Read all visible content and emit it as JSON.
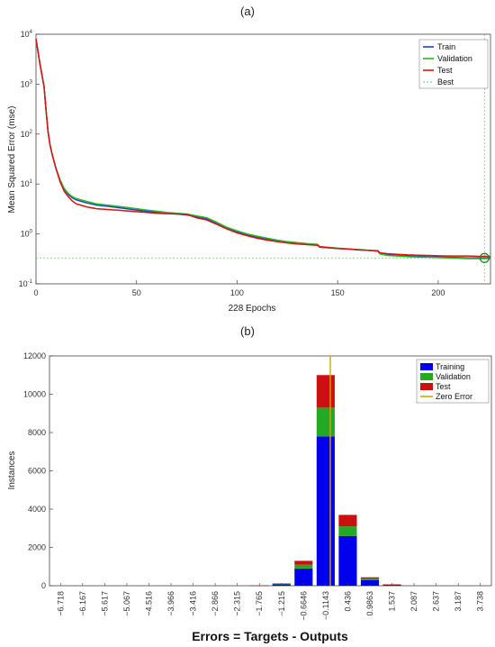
{
  "chart_data": [
    {
      "panel": "(a)",
      "type": "line",
      "xlabel": "228 Epochs",
      "ylabel": "Mean Squared Error  (mse)",
      "xlim": [
        0,
        226
      ],
      "ylim_log10": [
        -1,
        4
      ],
      "yscale": "log",
      "xticks": [
        0,
        50,
        100,
        150,
        200
      ],
      "yticks": [
        {
          "value": 0.1,
          "base": "10",
          "exp": "-1"
        },
        {
          "value": 1,
          "base": "10",
          "exp": "0"
        },
        {
          "value": 10,
          "base": "10",
          "exp": "1"
        },
        {
          "value": 100,
          "base": "10",
          "exp": "2"
        },
        {
          "value": 1000,
          "base": "10",
          "exp": "3"
        },
        {
          "value": 10000,
          "base": "10",
          "exp": "4"
        }
      ],
      "legend": [
        "Train",
        "Validation",
        "Test",
        "Best"
      ],
      "legend_position": "top-right",
      "colors": {
        "Train": "#1f3fd6",
        "Validation": "#22bb22",
        "Test": "#e01010",
        "Best": "#66cc66"
      },
      "series": [
        {
          "name": "Train",
          "x": [
            0,
            1,
            2,
            3,
            4,
            5,
            6,
            7,
            8,
            9,
            10,
            12,
            14,
            16,
            18,
            20,
            25,
            30,
            35,
            40,
            45,
            50,
            55,
            60,
            65,
            70,
            75,
            80,
            85,
            90,
            95,
            100,
            105,
            110,
            115,
            120,
            125,
            130,
            135,
            140,
            141,
            145,
            150,
            155,
            160,
            165,
            170,
            171,
            175,
            180,
            185,
            190,
            195,
            200,
            205,
            210,
            215,
            220,
            223,
            226
          ],
          "y": [
            8000,
            4500,
            2500,
            1500,
            900,
            300,
            110,
            60,
            40,
            28,
            20,
            12,
            8,
            6.2,
            5.3,
            4.8,
            4.2,
            3.8,
            3.6,
            3.4,
            3.2,
            3.0,
            2.85,
            2.7,
            2.6,
            2.5,
            2.4,
            2.2,
            2.0,
            1.6,
            1.3,
            1.1,
            0.95,
            0.85,
            0.78,
            0.72,
            0.68,
            0.65,
            0.62,
            0.6,
            0.55,
            0.53,
            0.51,
            0.5,
            0.48,
            0.47,
            0.45,
            0.4,
            0.38,
            0.37,
            0.36,
            0.355,
            0.35,
            0.345,
            0.34,
            0.335,
            0.33,
            0.33,
            0.33,
            0.33
          ]
        },
        {
          "name": "Validation",
          "x": [
            0,
            1,
            2,
            3,
            4,
            5,
            6,
            7,
            8,
            9,
            10,
            12,
            14,
            16,
            18,
            20,
            25,
            30,
            35,
            40,
            45,
            50,
            55,
            60,
            65,
            70,
            75,
            80,
            85,
            90,
            95,
            100,
            105,
            110,
            115,
            120,
            125,
            130,
            135,
            140,
            141,
            145,
            150,
            155,
            160,
            165,
            170,
            171,
            175,
            180,
            185,
            190,
            195,
            200,
            205,
            210,
            215,
            220,
            223,
            226
          ],
          "y": [
            8000,
            4500,
            2500,
            1500,
            900,
            300,
            110,
            60,
            40,
            28,
            20,
            12,
            8.2,
            6.5,
            5.6,
            5.1,
            4.5,
            4.0,
            3.8,
            3.6,
            3.4,
            3.2,
            3.0,
            2.85,
            2.7,
            2.6,
            2.5,
            2.3,
            2.1,
            1.7,
            1.35,
            1.15,
            1.0,
            0.9,
            0.82,
            0.75,
            0.7,
            0.67,
            0.64,
            0.62,
            0.56,
            0.54,
            0.52,
            0.5,
            0.49,
            0.47,
            0.45,
            0.4,
            0.37,
            0.36,
            0.35,
            0.345,
            0.34,
            0.335,
            0.33,
            0.325,
            0.32,
            0.32,
            0.32,
            0.32
          ]
        },
        {
          "name": "Test",
          "x": [
            0,
            1,
            2,
            3,
            4,
            5,
            6,
            7,
            8,
            9,
            10,
            12,
            14,
            16,
            18,
            20,
            25,
            30,
            35,
            40,
            45,
            50,
            55,
            60,
            65,
            70,
            75,
            80,
            85,
            90,
            95,
            100,
            105,
            110,
            115,
            120,
            125,
            130,
            135,
            140,
            141,
            145,
            150,
            155,
            160,
            165,
            170,
            171,
            175,
            180,
            185,
            190,
            195,
            200,
            205,
            210,
            215,
            220,
            223,
            226
          ],
          "y": [
            8000,
            4500,
            2500,
            1500,
            900,
            300,
            110,
            60,
            40,
            28,
            20,
            11,
            7.2,
            5.6,
            4.6,
            4.0,
            3.5,
            3.2,
            3.1,
            3.0,
            2.9,
            2.8,
            2.7,
            2.6,
            2.55,
            2.5,
            2.45,
            2.1,
            1.9,
            1.55,
            1.25,
            1.05,
            0.92,
            0.82,
            0.75,
            0.7,
            0.66,
            0.63,
            0.61,
            0.59,
            0.55,
            0.53,
            0.51,
            0.5,
            0.48,
            0.47,
            0.46,
            0.42,
            0.4,
            0.39,
            0.38,
            0.375,
            0.37,
            0.365,
            0.36,
            0.36,
            0.36,
            0.355,
            0.355,
            0.355
          ]
        }
      ],
      "best": {
        "epoch": 223,
        "value": 0.33
      }
    },
    {
      "panel": "(b)",
      "type": "bar",
      "stacked": true,
      "xlabel": "Errors = Targets - Outputs",
      "ylabel": "Instances",
      "ylim": [
        0,
        12000
      ],
      "yticks": [
        0,
        2000,
        4000,
        6000,
        8000,
        10000,
        12000
      ],
      "categories": [
        "−6.718",
        "−6.167",
        "−5.617",
        "−5.067",
        "−4.516",
        "−3.966",
        "−3.416",
        "−2.866",
        "−2.315",
        "−1.765",
        "−1.215",
        "−0.6646",
        "−0.1143",
        "0.436",
        "0.9863",
        "1.537",
        "2.087",
        "2.637",
        "3.187",
        "3.738"
      ],
      "legend": [
        "Training",
        "Validation",
        "Test",
        "Zero Error"
      ],
      "legend_position": "top-right",
      "colors": {
        "Training": "#0000ee",
        "Validation": "#22aa22",
        "Test": "#cc1010",
        "Zero Error": "#d4a500"
      },
      "series": [
        {
          "name": "Training",
          "values": [
            0,
            0,
            0,
            0,
            0,
            0,
            0,
            0,
            0,
            10,
            80,
            900,
            7800,
            2600,
            300,
            50,
            0,
            0,
            0,
            0
          ]
        },
        {
          "name": "Validation",
          "values": [
            0,
            0,
            0,
            0,
            0,
            0,
            0,
            0,
            0,
            2,
            20,
            200,
            1500,
            500,
            70,
            10,
            0,
            0,
            0,
            0
          ]
        },
        {
          "name": "Test",
          "values": [
            0,
            0,
            0,
            0,
            0,
            0,
            0,
            0,
            0,
            2,
            20,
            200,
            1700,
            600,
            70,
            10,
            0,
            0,
            0,
            0
          ]
        }
      ],
      "zero_error": 0
    }
  ]
}
